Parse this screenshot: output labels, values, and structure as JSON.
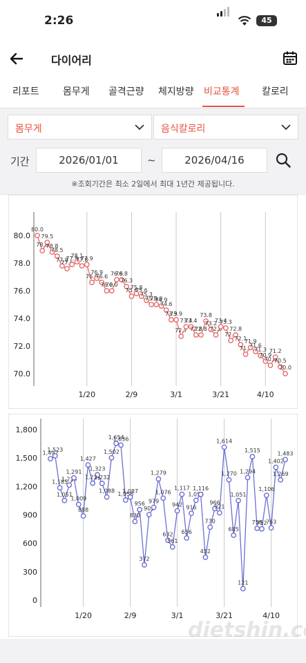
{
  "status_bar": {
    "time": "2:26",
    "battery": "45"
  },
  "header": {
    "title": "다이어리"
  },
  "tabs": [
    {
      "label": "리포트",
      "active": false
    },
    {
      "label": "몸무게",
      "active": false
    },
    {
      "label": "골격근량",
      "active": false
    },
    {
      "label": "체지방량",
      "active": false
    },
    {
      "label": "비교통계",
      "active": true
    },
    {
      "label": "칼로리",
      "active": false
    }
  ],
  "filters": {
    "metric_left": "몸무게",
    "metric_right": "음식칼로리",
    "period_label": "기간",
    "start_date": "2026/01/01",
    "separator": "~",
    "end_date": "2026/04/16",
    "notice": "※조회기간은 최소 2일에서 최대 1년간 제공됩니다."
  },
  "colors": {
    "accent": "#e8523f",
    "weight_line": "#e86b6b",
    "calorie_line": "#6a6fd6"
  },
  "chart_data": [
    {
      "type": "line",
      "x_ticks": [
        "1/20",
        "2/9",
        "3/1",
        "3/21",
        "4/10"
      ],
      "y_ticks": [
        "80.0",
        "78.0",
        "76.0",
        "74.0",
        "72.0",
        "70.0"
      ],
      "ylim": [
        69.6,
        80.9
      ],
      "grid": "vertical",
      "series": [
        {
          "values": [
            80.0,
            78.9,
            79.5,
            78.8,
            78.5,
            77.8,
            77.6,
            77.9,
            78.1,
            77.8,
            77.9,
            76.6,
            76.9,
            76.6,
            76.0,
            76.0,
            76.8,
            76.8,
            76.3,
            75.6,
            75.8,
            75.6,
            75.3,
            75.0,
            75.0,
            74.9,
            74.6,
            73.9,
            73.9,
            72.7,
            73.4,
            73.4,
            72.8,
            72.8,
            73.8,
            73.2,
            72.8,
            73.4,
            73.3,
            72.4,
            72.8,
            72.1,
            71.4,
            71.9,
            71.6,
            71.3,
            70.9,
            70.6,
            71.2,
            70.5,
            70.0
          ]
        }
      ]
    },
    {
      "type": "line",
      "x_ticks": [
        "1/20",
        "2/9",
        "3/1",
        "3/21",
        "4/10"
      ],
      "y_ticks": [
        "1,800",
        "1,500",
        "1,200",
        "900",
        "600",
        "300",
        "0"
      ],
      "ylim": [
        0,
        1800
      ],
      "grid": "vertical",
      "series": [
        {
          "values": [
            1492,
            1523,
            1185,
            1051,
            1214,
            1291,
            1009,
            888,
            1427,
            1234,
            1323,
            1232,
            1088,
            1502,
            1654,
            1636,
            1056,
            1087,
            830,
            956,
            372,
            903,
            979,
            1279,
            1076,
            632,
            561,
            942,
            1117,
            656,
            916,
            1054,
            1116,
            452,
            770,
            966,
            921,
            1614,
            1270,
            685,
            1051,
            121,
            1294,
            1515,
            758,
            752,
            1106,
            763,
            1402,
            1269,
            1483
          ]
        }
      ]
    }
  ]
}
